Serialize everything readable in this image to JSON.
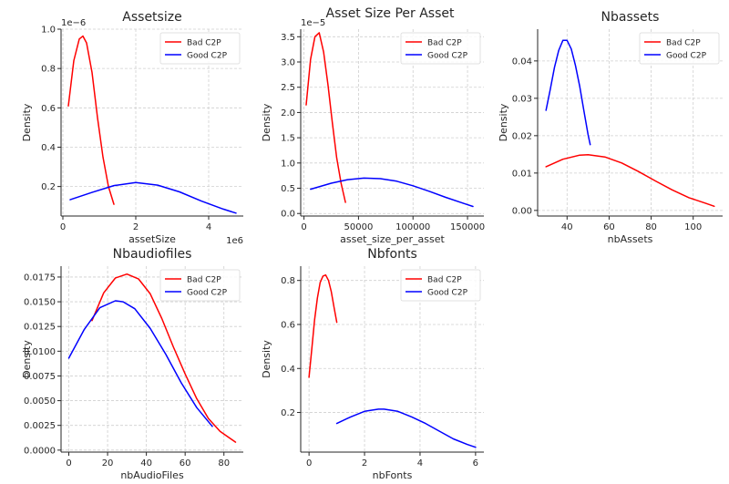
{
  "suptitle": "Asset Size Per Asset",
  "chart_data": [
    {
      "type": "line",
      "title": "Assetsize",
      "xlabel": "assetSize",
      "ylabel": "Density",
      "x_offset_label": "1e6",
      "y_offset_label": "1e−6",
      "xlim": [
        -50000,
        4950000
      ],
      "ylim": [
        0.05,
        1.0
      ],
      "xticks": [
        0,
        2000000,
        4000000
      ],
      "xtick_labels": [
        "0",
        "2",
        "4"
      ],
      "yticks": [
        0.2,
        0.4,
        0.6,
        0.8,
        1.0
      ],
      "ytick_labels": [
        "0.2",
        "0.4",
        "0.6",
        "0.8",
        "1.0"
      ],
      "grid": true,
      "legend_position": "upper right",
      "series": [
        {
          "name": "Bad C2P",
          "color": "#ff0000",
          "x": [
            150000,
            300000,
            450000,
            550000,
            650000,
            800000,
            950000,
            1100000,
            1250000,
            1400000
          ],
          "y": [
            0.61,
            0.84,
            0.95,
            0.965,
            0.93,
            0.78,
            0.55,
            0.35,
            0.2,
            0.11
          ]
        },
        {
          "name": "Good C2P",
          "color": "#0000ff",
          "x": [
            200000,
            800000,
            1400000,
            2000000,
            2600000,
            3200000,
            3800000,
            4400000,
            4750000
          ],
          "y": [
            0.133,
            0.17,
            0.205,
            0.22,
            0.207,
            0.173,
            0.126,
            0.085,
            0.065
          ]
        }
      ]
    },
    {
      "type": "line",
      "title": "",
      "xlabel": "asset_size_per_asset",
      "ylabel": "Density",
      "y_offset_label": "1e−5",
      "xlim": [
        -3000,
        165000
      ],
      "ylim": [
        -0.05,
        3.65
      ],
      "xticks": [
        0,
        50000,
        100000,
        150000
      ],
      "xtick_labels": [
        "0",
        "50000",
        "100000",
        "150000"
      ],
      "yticks": [
        0.0,
        0.5,
        1.0,
        1.5,
        2.0,
        2.5,
        3.0,
        3.5
      ],
      "ytick_labels": [
        "0.0",
        "0.5",
        "1.0",
        "1.5",
        "2.0",
        "2.5",
        "3.0",
        "3.5"
      ],
      "grid": true,
      "legend_position": "upper right",
      "series": [
        {
          "name": "Bad C2P",
          "color": "#ff0000",
          "x": [
            2000,
            6000,
            10000,
            14000,
            18000,
            22000,
            26000,
            30000,
            34000,
            38000
          ],
          "y": [
            2.15,
            3.05,
            3.5,
            3.58,
            3.2,
            2.55,
            1.8,
            1.1,
            0.6,
            0.22
          ]
        },
        {
          "name": "Good C2P",
          "color": "#0000ff",
          "x": [
            6000,
            25000,
            40000,
            55000,
            70000,
            85000,
            100000,
            115000,
            130000,
            145000,
            155000
          ],
          "y": [
            0.48,
            0.6,
            0.67,
            0.7,
            0.69,
            0.64,
            0.55,
            0.44,
            0.32,
            0.21,
            0.14
          ]
        }
      ]
    },
    {
      "type": "line",
      "title": "Nbassets",
      "xlabel": "nbAssets",
      "ylabel": "Density",
      "xlim": [
        26,
        114
      ],
      "ylim": [
        -0.0015,
        0.0485
      ],
      "xticks": [
        40,
        60,
        80,
        100
      ],
      "xtick_labels": [
        "40",
        "60",
        "80",
        "100"
      ],
      "yticks": [
        0.0,
        0.01,
        0.02,
        0.03,
        0.04
      ],
      "ytick_labels": [
        "0.00",
        "0.01",
        "0.02",
        "0.03",
        "0.04"
      ],
      "grid": true,
      "legend_position": "upper right",
      "series": [
        {
          "name": "Bad C2P",
          "color": "#ff0000",
          "x": [
            30,
            38,
            46,
            50,
            58,
            66,
            74,
            82,
            90,
            98,
            106,
            110
          ],
          "y": [
            0.0117,
            0.0137,
            0.0148,
            0.0149,
            0.0143,
            0.0127,
            0.0104,
            0.0079,
            0.0055,
            0.0034,
            0.0019,
            0.0011
          ]
        },
        {
          "name": "Good C2P",
          "color": "#0000ff",
          "x": [
            30,
            32,
            34,
            36,
            38,
            40,
            42,
            44,
            46,
            48,
            50,
            51
          ],
          "y": [
            0.0268,
            0.0323,
            0.0383,
            0.0428,
            0.0455,
            0.0455,
            0.0432,
            0.0388,
            0.0333,
            0.0266,
            0.0202,
            0.0176
          ]
        }
      ]
    },
    {
      "type": "line",
      "title": "Nbaudiofiles",
      "xlabel": "nbAudioFiles",
      "ylabel": "Density",
      "xlim": [
        -4,
        90
      ],
      "ylim": [
        -0.0002,
        0.0186
      ],
      "xticks": [
        0,
        20,
        40,
        60,
        80
      ],
      "xtick_labels": [
        "0",
        "20",
        "40",
        "60",
        "80"
      ],
      "yticks": [
        0.0,
        0.0025,
        0.005,
        0.0075,
        0.01,
        0.0125,
        0.015,
        0.0175
      ],
      "ytick_labels": [
        "0.0000",
        "0.0025",
        "0.0050",
        "0.0075",
        "0.0100",
        "0.0125",
        "0.0150",
        "0.0175"
      ],
      "grid": true,
      "legend_position": "upper right",
      "series": [
        {
          "name": "Bad C2P",
          "color": "#ff0000",
          "x": [
            12,
            18,
            24,
            30,
            36,
            42,
            48,
            54,
            60,
            66,
            72,
            78,
            86
          ],
          "y": [
            0.0131,
            0.0159,
            0.0174,
            0.0178,
            0.0173,
            0.0158,
            0.0133,
            0.0104,
            0.0077,
            0.0052,
            0.0032,
            0.0019,
            0.0008
          ]
        },
        {
          "name": "Good C2P",
          "color": "#0000ff",
          "x": [
            0,
            8,
            16,
            24,
            28,
            34,
            42,
            50,
            58,
            66,
            74
          ],
          "y": [
            0.0093,
            0.0122,
            0.0144,
            0.0151,
            0.015,
            0.0143,
            0.0123,
            0.0097,
            0.0068,
            0.0043,
            0.0024
          ]
        }
      ]
    },
    {
      "type": "line",
      "title": "Nbfonts",
      "xlabel": "nbFonts",
      "ylabel": "Density",
      "xlim": [
        -0.3,
        6.3
      ],
      "ylim": [
        0.02,
        0.865
      ],
      "xticks": [
        0,
        2,
        4,
        6
      ],
      "xtick_labels": [
        "0",
        "2",
        "4",
        "6"
      ],
      "yticks": [
        0.2,
        0.4,
        0.6,
        0.8
      ],
      "ytick_labels": [
        "0.2",
        "0.4",
        "0.6",
        "0.8"
      ],
      "grid": true,
      "legend_position": "upper right",
      "series": [
        {
          "name": "Bad C2P",
          "color": "#ff0000",
          "x": [
            0,
            0.1,
            0.2,
            0.3,
            0.4,
            0.5,
            0.6,
            0.7,
            0.8,
            0.9,
            1.0
          ],
          "y": [
            0.36,
            0.49,
            0.62,
            0.72,
            0.79,
            0.82,
            0.825,
            0.8,
            0.75,
            0.68,
            0.61
          ]
        },
        {
          "name": "Good C2P",
          "color": "#0000ff",
          "x": [
            1.0,
            1.5,
            2.0,
            2.5,
            2.7,
            3.2,
            3.7,
            4.2,
            4.7,
            5.2,
            5.7,
            6.0
          ],
          "y": [
            0.15,
            0.18,
            0.205,
            0.215,
            0.215,
            0.205,
            0.18,
            0.15,
            0.115,
            0.08,
            0.055,
            0.042
          ]
        }
      ]
    }
  ]
}
